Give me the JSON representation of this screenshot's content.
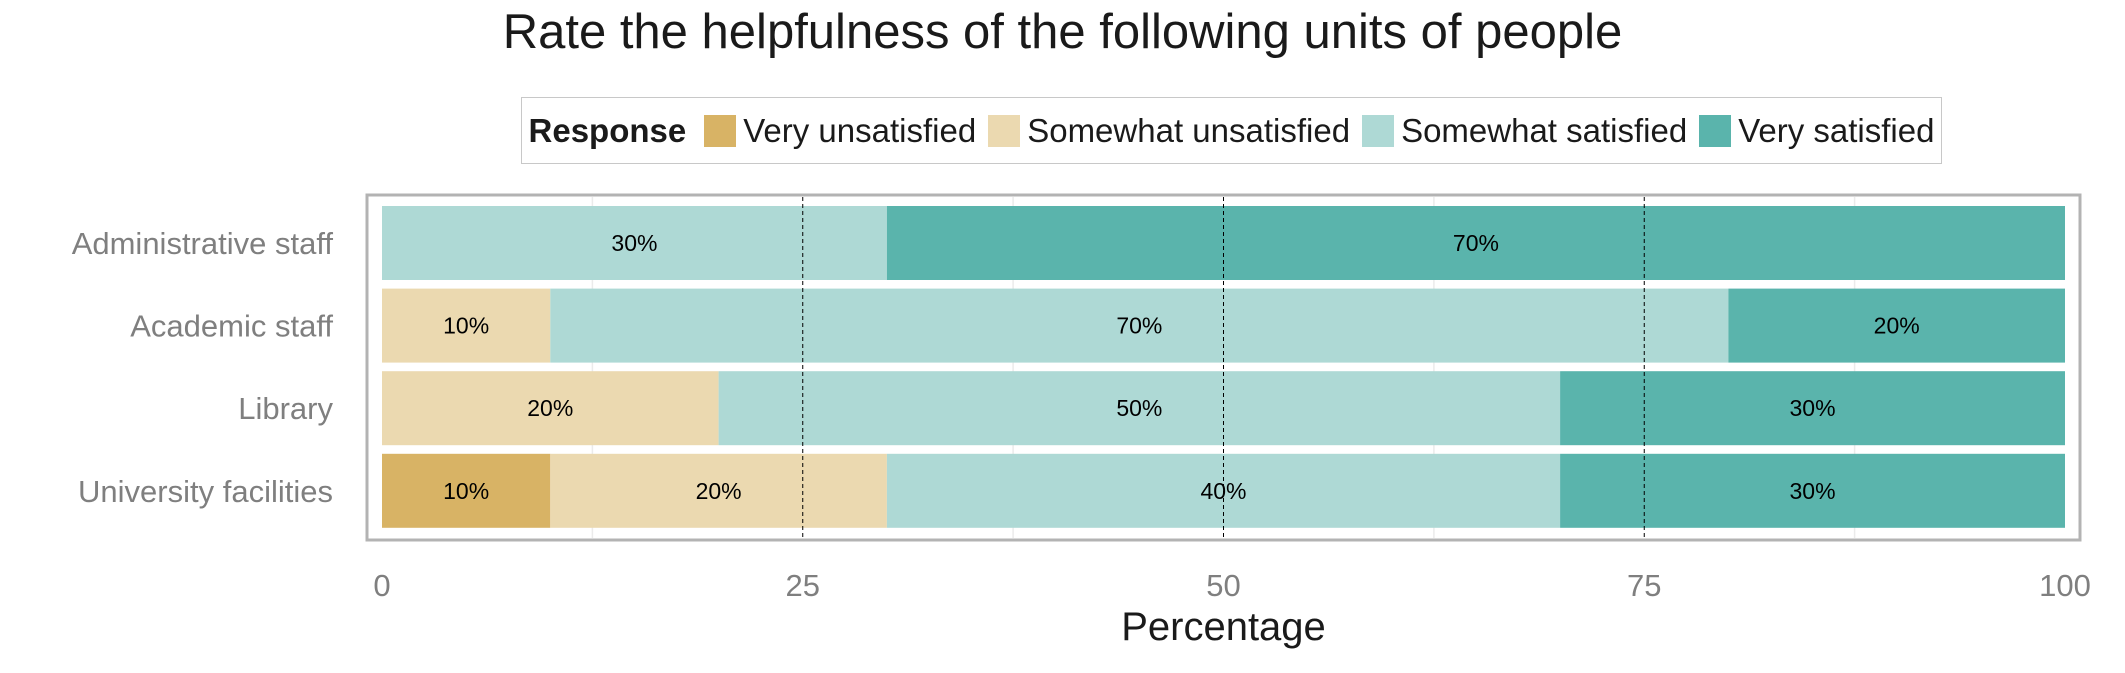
{
  "chart_data": {
    "type": "bar",
    "orientation": "horizontal",
    "stacked": true,
    "title": "Rate the helpfulness of the following units of people",
    "xlabel": "Percentage",
    "ylabel": "",
    "xlim": [
      0,
      100
    ],
    "x_ticks": [
      "0",
      "25",
      "50",
      "75",
      "100"
    ],
    "grid": true,
    "legend_title": "Response",
    "legend_position": "top",
    "categories": [
      "Administrative staff",
      "Academic staff",
      "Library",
      "University facilities"
    ],
    "series": [
      {
        "name": "Very unsatisfied",
        "color": "#d8b365",
        "values": [
          0,
          0,
          0,
          10
        ],
        "labels": [
          "",
          "",
          "",
          "10%"
        ]
      },
      {
        "name": "Somewhat unsatisfied",
        "color": "#ebd9b0",
        "values": [
          0,
          10,
          20,
          20
        ],
        "labels": [
          "",
          "10%",
          "20%",
          "20%"
        ]
      },
      {
        "name": "Somewhat satisfied",
        "color": "#aed9d5",
        "values": [
          30,
          70,
          50,
          40
        ],
        "labels": [
          "30%",
          "70%",
          "50%",
          "40%"
        ]
      },
      {
        "name": "Very satisfied",
        "color": "#5ab4ac",
        "values": [
          70,
          20,
          30,
          30
        ],
        "labels": [
          "70%",
          "20%",
          "30%",
          "30%"
        ]
      }
    ]
  }
}
